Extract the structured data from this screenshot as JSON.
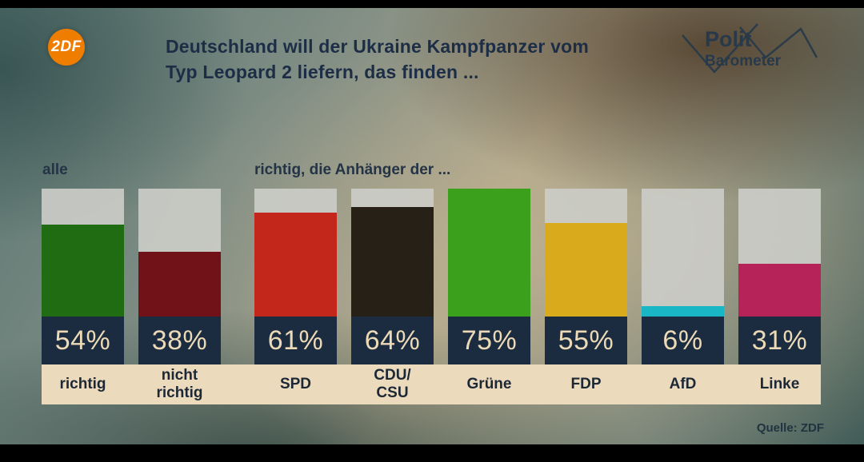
{
  "header": {
    "zdf_logo_text": "2DF",
    "title_line1": "Deutschland will der Ukraine Kampfpanzer vom",
    "title_line2": "Typ Leopard 2 liefern, das finden ...",
    "brand_top": "Polit",
    "brand_bottom": "Barometer"
  },
  "chart_data": {
    "type": "bar",
    "title": "Deutschland will der Ukraine Kampfpanzer vom Typ Leopard 2 liefern, das finden ...",
    "group_labels": [
      "alle",
      "richtig, die Anhänger der ..."
    ],
    "categories": [
      "richtig",
      "nicht\nrichtig",
      "SPD",
      "CDU/\nCSU",
      "Grüne",
      "FDP",
      "AfD",
      "Linke"
    ],
    "values": [
      54,
      38,
      61,
      64,
      75,
      55,
      6,
      31
    ],
    "value_labels": [
      "54%",
      "38%",
      "61%",
      "64%",
      "75%",
      "55%",
      "6%",
      "31%"
    ],
    "colors": [
      "#1f6c13",
      "#701217",
      "#c3271b",
      "#262017",
      "#3ba11d",
      "#d9aa1b",
      "#19b6c6",
      "#b62359"
    ],
    "unit": "%",
    "xlabel": "",
    "ylabel": "",
    "ylim": [
      0,
      75
    ],
    "grid": false,
    "legend_position": "none"
  },
  "footer": {
    "source": "Quelle: ZDF"
  }
}
